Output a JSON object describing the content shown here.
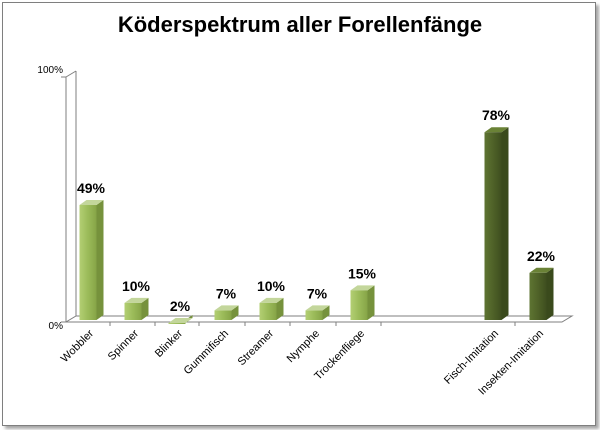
{
  "chart_data": {
    "type": "bar",
    "title": "Köderspektrum aller Forellenfänge",
    "xlabel": "",
    "ylabel": "",
    "ylim": [
      0,
      100
    ],
    "y_tick_labels": [
      "0%",
      "100%"
    ],
    "grid": false,
    "legend": "none",
    "bars": [
      {
        "category": "Wobbler",
        "value": 49,
        "label": "49%",
        "color": "#9bbb59"
      },
      {
        "category": "Spinner",
        "value": 10,
        "label": "10%",
        "color": "#9bbb59"
      },
      {
        "category": "Blinker",
        "value": 2,
        "label": "2%",
        "color": "#9bbb59"
      },
      {
        "category": "Gummifisch",
        "value": 7,
        "label": "7%",
        "color": "#9bbb59"
      },
      {
        "category": "Streamer",
        "value": 10,
        "label": "10%",
        "color": "#9bbb59"
      },
      {
        "category": "Nymphe",
        "value": 7,
        "label": "7%",
        "color": "#9bbb59"
      },
      {
        "category": "Trockenfliege",
        "value": 15,
        "label": "15%",
        "color": "#9bbb59"
      },
      {
        "category": "Fisch-Imitation",
        "value": 78,
        "label": "78%",
        "color": "#4f6228"
      },
      {
        "category": "Insekten-Imitation",
        "value": 22,
        "label": "22%",
        "color": "#4f6228"
      }
    ],
    "colors": {
      "light_bar": "#9bbb59",
      "dark_bar": "#4f6228",
      "axis": "#7f7f7f"
    }
  }
}
